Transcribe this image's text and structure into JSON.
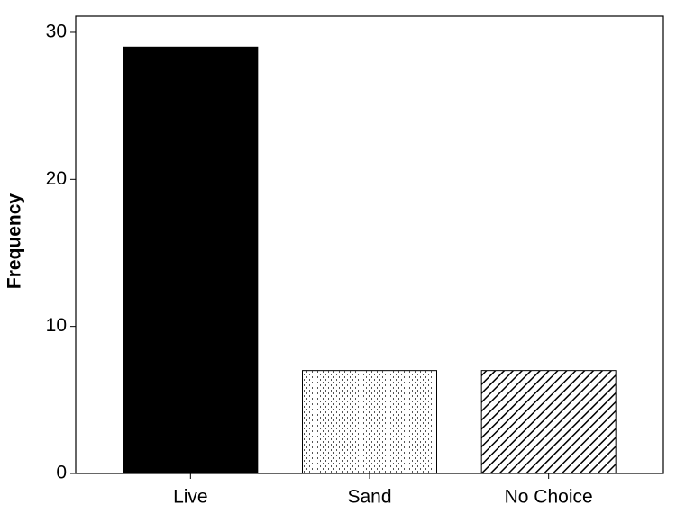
{
  "chart_data": {
    "type": "bar",
    "y_label": "Frequency",
    "categories": [
      "Live",
      "Sand",
      "No Choice"
    ],
    "values": [
      29,
      7,
      7
    ],
    "colors": [
      "#000000",
      "#ffffff",
      "#ffffff"
    ],
    "patterns": [
      "solid",
      "dots",
      "diagonal"
    ],
    "ylim": [
      0,
      31.1
    ],
    "yticks": [
      0,
      10,
      20,
      30
    ],
    "grid": false
  }
}
